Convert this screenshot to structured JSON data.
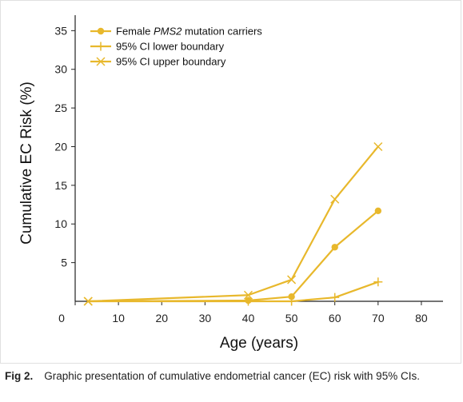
{
  "colors": {
    "series": "#e8b82c",
    "axis": "#222222"
  },
  "chart_data": {
    "type": "line",
    "title": "",
    "xlabel": "Age (years)",
    "ylabel": "Cumulative EC Risk (%)",
    "xlim": [
      0,
      85
    ],
    "ylim": [
      0,
      37
    ],
    "xticks": [
      0,
      10,
      20,
      30,
      40,
      50,
      60,
      70,
      80
    ],
    "yticks": [
      5,
      10,
      15,
      20,
      25,
      30,
      35
    ],
    "grid": false,
    "legend_position": "top-left",
    "series": [
      {
        "name_parts": [
          "Female ",
          "PMS2",
          " mutation carriers"
        ],
        "marker": "circle",
        "x": [
          3,
          40,
          50,
          60,
          70
        ],
        "y": [
          0,
          0.1,
          0.6,
          7,
          11.7
        ]
      },
      {
        "name_parts": [
          "95% CI lower boundary",
          "",
          ""
        ],
        "marker": "plus",
        "x": [
          3,
          40,
          50,
          60,
          70
        ],
        "y": [
          0,
          0,
          0,
          0.5,
          2.5
        ]
      },
      {
        "name_parts": [
          "95% CI upper boundary",
          "",
          ""
        ],
        "marker": "cross",
        "x": [
          3,
          40,
          50,
          60,
          70
        ],
        "y": [
          0,
          0.8,
          2.8,
          13.2,
          20
        ]
      }
    ]
  },
  "caption": {
    "label": "Fig 2.",
    "text": "Graphic presentation of cumulative endometrial cancer (EC) risk with 95% CIs."
  }
}
